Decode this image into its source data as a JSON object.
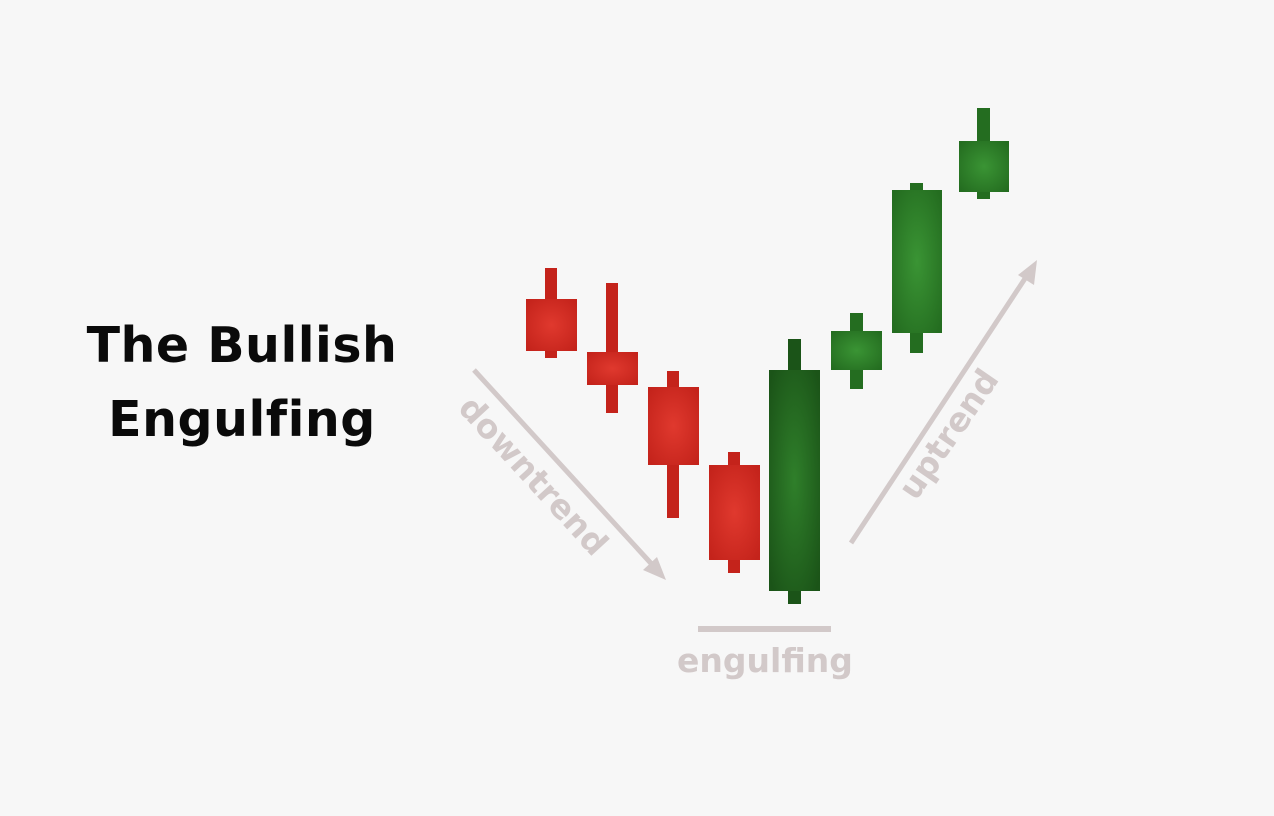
{
  "title": {
    "line1": "The Bullish",
    "line2": "Engulfing"
  },
  "annotations": {
    "downtrend": "downtrend",
    "uptrend": "uptrend",
    "engulfing": "engulfing"
  },
  "colors": {
    "background": "#f7f7f7",
    "bearish": "#d42b22",
    "bearish_dark": "#b51f18",
    "bullish": "#2f8a2a",
    "bullish_dark": "#1f5e1b",
    "annotation": "#d2c9c9",
    "title": "#0a0a0a"
  }
}
